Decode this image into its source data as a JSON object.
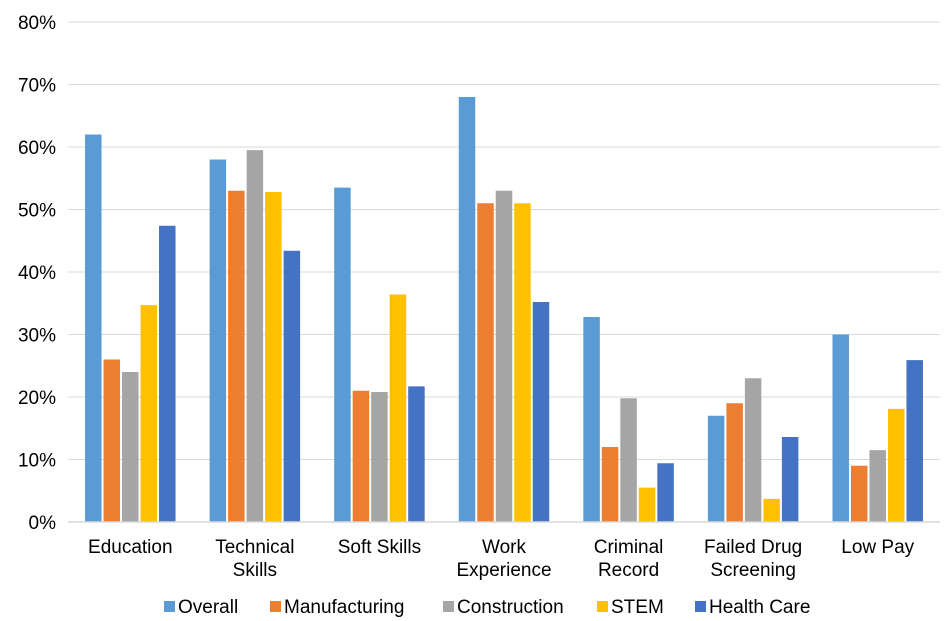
{
  "chart_data": {
    "type": "bar",
    "title": "",
    "xlabel": "",
    "ylabel": "",
    "ylim": [
      0,
      0.8
    ],
    "yticks": [
      "0%",
      "10%",
      "20%",
      "30%",
      "40%",
      "50%",
      "60%",
      "70%",
      "80%"
    ],
    "grid": true,
    "legend_position": "bottom",
    "categories": [
      [
        "Education"
      ],
      [
        "Technical",
        "Skills"
      ],
      [
        "Soft Skills"
      ],
      [
        "Work",
        "Experience"
      ],
      [
        "Criminal",
        "Record"
      ],
      [
        "Failed Drug",
        "Screening"
      ],
      [
        "Low Pay"
      ]
    ],
    "series": [
      {
        "name": "Overall",
        "color": "#5B9BD5",
        "values": [
          0.62,
          0.58,
          0.535,
          0.68,
          0.328,
          0.17,
          0.3
        ]
      },
      {
        "name": "Manufacturing",
        "color": "#ED7D31",
        "values": [
          0.26,
          0.53,
          0.21,
          0.51,
          0.12,
          0.19,
          0.09
        ]
      },
      {
        "name": "Construction",
        "color": "#A5A5A5",
        "values": [
          0.24,
          0.595,
          0.208,
          0.53,
          0.198,
          0.23,
          0.115
        ]
      },
      {
        "name": "STEM",
        "color": "#FFC000",
        "values": [
          0.347,
          0.528,
          0.364,
          0.51,
          0.055,
          0.037,
          0.181
        ]
      },
      {
        "name": "Health Care",
        "color": "#4472C4",
        "values": [
          0.474,
          0.434,
          0.217,
          0.352,
          0.094,
          0.136,
          0.259
        ]
      }
    ]
  }
}
